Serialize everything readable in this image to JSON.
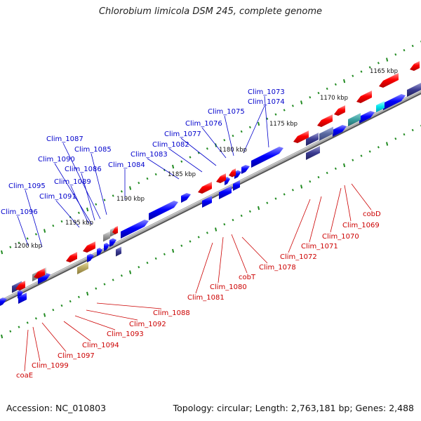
{
  "title": "Chlorobium limicola DSM 245, complete genome",
  "accession": "Accession: NC_010803",
  "topology": "Topology: circular; Length: 2,763,181 bp; Genes: 2,488",
  "colors": {
    "forward": "#0000ff",
    "reverse": "#ff0000",
    "backbone": "#888888",
    "tick": "#228b22",
    "forward_label": "#0000cc",
    "reverse_label": "#cc0000",
    "navy": "#3a3a90",
    "grey": "#999999",
    "olive": "#b8a860",
    "cyan": "#00e5ee",
    "teal": "#3aa0a0",
    "steel": "#5a6aa0"
  },
  "ruler": {
    "labels": [
      "1165 kbp",
      "1170 kbp",
      "1175 kbp",
      "1180 kbp",
      "1185 kbp",
      "1190 kbp",
      "1195 kbp",
      "1200 kbp"
    ]
  },
  "forward_labels": [
    "Clim_1073",
    "Clim_1074",
    "Clim_1075",
    "Clim_1076",
    "Clim_1077",
    "Clim_1082",
    "Clim_1083",
    "Clim_1084",
    "Clim_1085",
    "Clim_1087",
    "Clim_1090",
    "Clim_1086",
    "Clim_1089",
    "Clim_1095",
    "Clim_1091",
    "Clim_1096"
  ],
  "reverse_labels": [
    "cobD",
    "Clim_1069",
    "Clim_1070",
    "Clim_1071",
    "Clim_1072",
    "Clim_1078",
    "cobT",
    "Clim_1080",
    "Clim_1081",
    "Clim_1088",
    "Clim_1092",
    "Clim_1093",
    "Clim_1094",
    "Clim_1097",
    "Clim_1099",
    "coaE"
  ]
}
